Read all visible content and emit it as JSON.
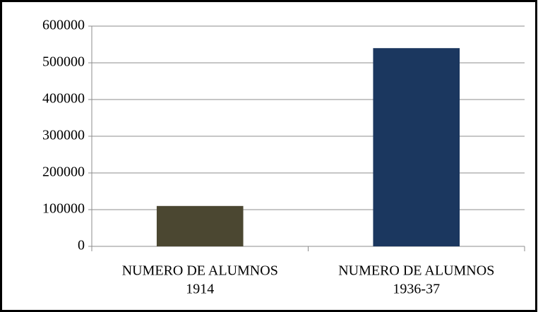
{
  "chart_data": {
    "type": "bar",
    "categories": [
      [
        "NUMERO DE ALUMNOS",
        "1914"
      ],
      [
        "NUMERO DE ALUMNOS",
        "1936-37"
      ]
    ],
    "values": [
      110000,
      540000
    ],
    "colors": [
      "#4b4731",
      "#1b375f"
    ],
    "ylim": [
      0,
      600000
    ],
    "yticks": [
      0,
      100000,
      200000,
      300000,
      400000,
      500000,
      600000
    ],
    "grid": true
  }
}
